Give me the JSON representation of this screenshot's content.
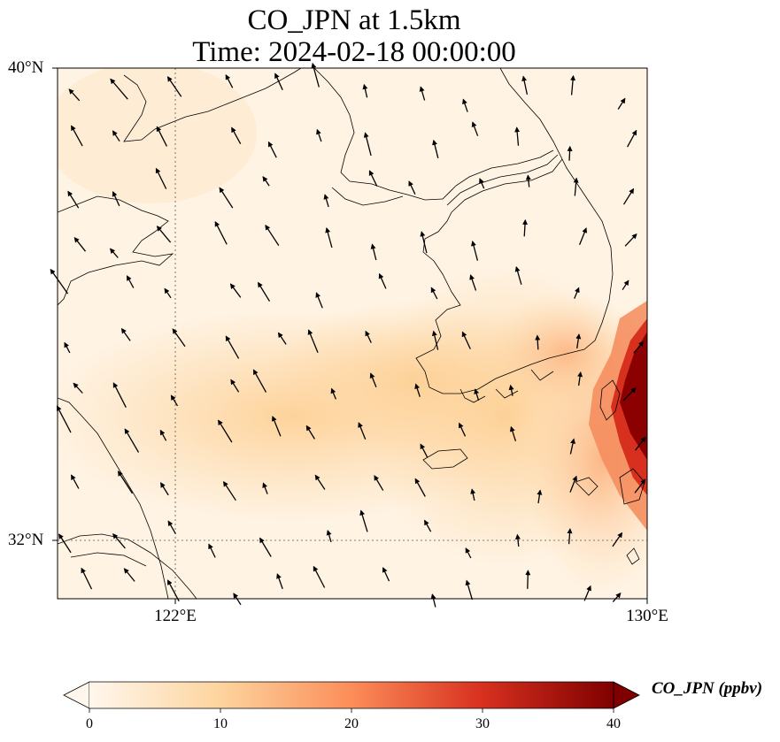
{
  "title": {
    "line1": "CO_JPN at 1.5km",
    "line2": "Time: 2024-02-18 00:00:00"
  },
  "map": {
    "lat_range": [
      31.0,
      40.0
    ],
    "lon_range": [
      120.0,
      130.0
    ],
    "lat_labels": [
      "40°N",
      "32°N"
    ],
    "lon_labels": [
      "122°E",
      "130°E"
    ],
    "gridlines": "dotted",
    "features": [
      "coastlines",
      "wind-vectors",
      "co-concentration-field"
    ]
  },
  "colorbar": {
    "label": "CO_JPN (ppbv)",
    "ticks": [
      "0",
      "10",
      "20",
      "30",
      "40"
    ],
    "range": [
      0,
      40
    ],
    "colormap": "OrRd",
    "extend": "both",
    "colors": [
      "#fff7ec",
      "#fdd49e",
      "#fc8d59",
      "#d7301f",
      "#7f0000"
    ]
  }
}
